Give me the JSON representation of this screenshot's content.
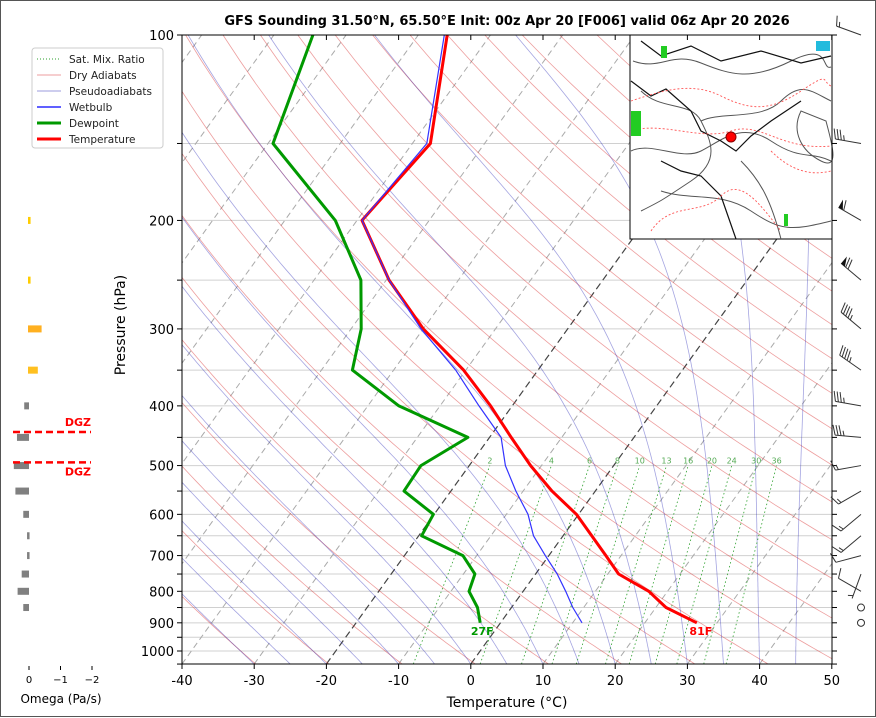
{
  "chart_data": {
    "type": "line",
    "subtype": "skew-t log-p",
    "title": "GFS Sounding 31.50°N, 65.50°E Init: 00z Apr 20 [F006] valid 06z Apr 20 2026",
    "xlabel": "Temperature (°C)",
    "ylabel": "Pressure (hPa)",
    "xlim": [
      -40,
      50
    ],
    "ylim": [
      1050,
      100
    ],
    "x_ticks": [
      -40,
      -30,
      -20,
      -10,
      0,
      10,
      20,
      30,
      40,
      50
    ],
    "y_ticks": [
      100,
      200,
      300,
      400,
      500,
      600,
      700,
      800,
      900,
      1000
    ],
    "legend": {
      "position": "upper-left",
      "entries": [
        {
          "label": "Sat. Mix. Ratio",
          "color": "#2ca02c",
          "style": "dotted"
        },
        {
          "label": "Dry Adiabats",
          "color": "#d62728",
          "style": "thin"
        },
        {
          "label": "Pseudoadiabats",
          "color": "#1f1fb4",
          "style": "thin"
        },
        {
          "label": "Wetbulb",
          "color": "#0000ff",
          "style": "solid"
        },
        {
          "label": "Dewpoint",
          "color": "#009900",
          "style": "thick"
        },
        {
          "label": "Temperature",
          "color": "#ff0000",
          "style": "thick"
        }
      ]
    },
    "series": [
      {
        "name": "Temperature",
        "color": "#ff0000",
        "points": [
          [
            900,
            27.2
          ],
          [
            850,
            21.4
          ],
          [
            800,
            17.4
          ],
          [
            750,
            11.5
          ],
          [
            700,
            7.9
          ],
          [
            600,
            -0.3
          ],
          [
            550,
            -6
          ],
          [
            500,
            -11.5
          ],
          [
            450,
            -17
          ],
          [
            400,
            -23
          ],
          [
            350,
            -30.3
          ],
          [
            300,
            -40
          ],
          [
            250,
            -49.6
          ],
          [
            200,
            -59.3
          ],
          [
            150,
            -57.5
          ],
          [
            100,
            -66
          ]
        ]
      },
      {
        "name": "Dewpoint",
        "color": "#009900",
        "points": [
          [
            900,
            -2.8
          ],
          [
            850,
            -4.7
          ],
          [
            800,
            -7.5
          ],
          [
            750,
            -8.4
          ],
          [
            700,
            -11.9
          ],
          [
            650,
            -19.6
          ],
          [
            600,
            -20.1
          ],
          [
            550,
            -26.5
          ],
          [
            500,
            -26.7
          ],
          [
            450,
            -23
          ],
          [
            400,
            -35.7
          ],
          [
            350,
            -45.7
          ],
          [
            300,
            -48.6
          ],
          [
            250,
            -53.5
          ],
          [
            200,
            -63
          ],
          [
            150,
            -79.3
          ],
          [
            100,
            -84.6
          ]
        ]
      },
      {
        "name": "Wetbulb",
        "color": "#3333ff",
        "points": [
          [
            900,
            11.3
          ],
          [
            850,
            8.5
          ],
          [
            800,
            5.9
          ],
          [
            750,
            3
          ],
          [
            700,
            -0.5
          ],
          [
            650,
            -4.1
          ],
          [
            600,
            -7
          ],
          [
            550,
            -11
          ],
          [
            500,
            -15
          ],
          [
            450,
            -18.4
          ],
          [
            400,
            -24.6
          ],
          [
            350,
            -31.4
          ],
          [
            300,
            -40.3
          ],
          [
            250,
            -49.6
          ],
          [
            200,
            -59.3
          ],
          [
            150,
            -58
          ],
          [
            100,
            -66.4
          ]
        ]
      }
    ],
    "highlighted_isotherms": [
      0,
      -20
    ],
    "mixing_ratio_labels": [
      "2",
      "4",
      "6",
      "8",
      "10",
      "13",
      "16",
      "20",
      "24",
      "30",
      "36"
    ],
    "mixing_ratio_values": [
      2,
      4,
      6,
      8,
      10,
      13,
      16,
      20,
      24,
      30,
      36
    ],
    "surface_labels": {
      "dewpoint": "27F",
      "temperature": "81F"
    },
    "winds_knots": [
      {
        "p": 100,
        "dir": 290,
        "spd": 15
      },
      {
        "p": 150,
        "dir": 280,
        "spd": 35
      },
      {
        "p": 200,
        "dir": 300,
        "spd": 60
      },
      {
        "p": 250,
        "dir": 310,
        "spd": 70
      },
      {
        "p": 300,
        "dir": 310,
        "spd": 45
      },
      {
        "p": 350,
        "dir": 305,
        "spd": 45
      },
      {
        "p": 400,
        "dir": 280,
        "spd": 35
      },
      {
        "p": 450,
        "dir": 275,
        "spd": 35
      },
      {
        "p": 500,
        "dir": 260,
        "spd": 15
      },
      {
        "p": 550,
        "dir": 240,
        "spd": 15
      },
      {
        "p": 600,
        "dir": 230,
        "spd": 15
      },
      {
        "p": 650,
        "dir": 230,
        "spd": 15
      },
      {
        "p": 700,
        "dir": 255,
        "spd": 10
      },
      {
        "p": 750,
        "dir": 200,
        "spd": 5
      },
      {
        "p": 800,
        "dir": 300,
        "spd": 10
      },
      {
        "p": 850,
        "dir": 0,
        "spd": 0
      },
      {
        "p": 900,
        "dir": 0,
        "spd": 0
      }
    ],
    "omega_panel": {
      "xlabel": "Omega (Pa/s)",
      "x_ticks": [
        0,
        -1,
        -2
      ],
      "x_tick_labels": [
        "0",
        "−1",
        "−2"
      ],
      "bars": [
        {
          "p": 200,
          "omega": -0.05,
          "color": "#ffcc00"
        },
        {
          "p": 250,
          "omega": -0.05,
          "color": "#ffcc00"
        },
        {
          "p": 300,
          "omega": -0.4,
          "color": "#ffb020"
        },
        {
          "p": 350,
          "omega": -0.28,
          "color": "#ffc020"
        },
        {
          "p": 400,
          "omega": 0.12,
          "color": "#808080"
        },
        {
          "p": 450,
          "omega": 0.35,
          "color": "#808080"
        },
        {
          "p": 500,
          "omega": 0.45,
          "color": "#808080"
        },
        {
          "p": 550,
          "omega": 0.4,
          "color": "#808080"
        },
        {
          "p": 600,
          "omega": 0.15,
          "color": "#808080"
        },
        {
          "p": 650,
          "omega": 0.03,
          "color": "#808080"
        },
        {
          "p": 700,
          "omega": 0.03,
          "color": "#808080"
        },
        {
          "p": 750,
          "omega": 0.2,
          "color": "#808080"
        },
        {
          "p": 800,
          "omega": 0.33,
          "color": "#808080"
        },
        {
          "p": 850,
          "omega": 0.15,
          "color": "#808080"
        }
      ],
      "dgz": {
        "label": "DGZ",
        "top_p": 441,
        "bottom_p": 494,
        "color": "#ff0000"
      }
    }
  }
}
